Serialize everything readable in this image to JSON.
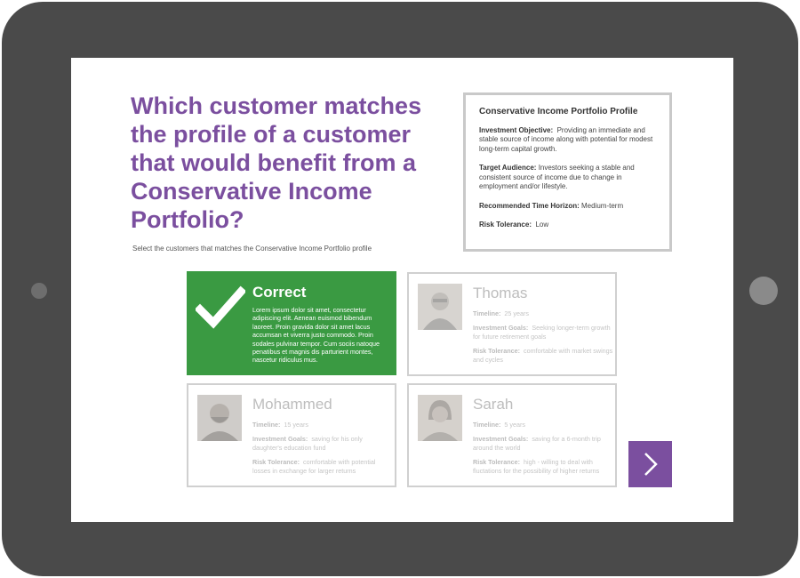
{
  "question": "Which customer matches the profile of a customer that would benefit from a Conservative Income Portfolio?",
  "instruction": "Select the customers that matches the Conservative Income Portfolio profile",
  "profile": {
    "title": "Conservative Income Portfolio Profile",
    "items": [
      {
        "label": "Investment Objective:",
        "value": "Providing an immediate and stable source of income along with potential for modest long-term capital growth."
      },
      {
        "label": "Target Audience:",
        "value": "Investors seeking a stable and consistent source of income due to change in employment and/or lifestyle."
      },
      {
        "label": "Recommended Time Horizon:",
        "value": "Medium-term"
      },
      {
        "label": "Risk Tolerance:",
        "value": "Low"
      }
    ]
  },
  "feedback": {
    "title": "Correct",
    "body": "Lorem ipsum dolor sit amet, consectetur adipiscing elit. Aenean euismod bibendum laoreet. Proin gravida dolor sit amet lacus accumsan et viverra justo commodo. Proin sodales pulvinar tempor. Cum sociis natoque penatibus et magnis dis parturient montes, nascetur ridiculus mus.",
    "color": "#3a9a42"
  },
  "customers": [
    {
      "name": "Thomas",
      "timeline_label": "Timeline:",
      "timeline": "25 years",
      "goals_label": "Investment Goals:",
      "goals": "Seeking longer-term growth for future retirement goals",
      "risk_label": "Risk Tolerance:",
      "risk": "comfortable with market swings and cycles"
    },
    {
      "name": "Mohammed",
      "timeline_label": "Timeline:",
      "timeline": "15 years",
      "goals_label": "Investment Goals:",
      "goals": "saving for his only daughter's education fund",
      "risk_label": "Risk Tolerance:",
      "risk": "comfortable with potential losses in exchange for larger returns"
    },
    {
      "name": "Sarah",
      "timeline_label": "Timeline:",
      "timeline": "5 years",
      "goals_label": "Investment Goals:",
      "goals": "saving for a 6-month trip around the world",
      "risk_label": "Risk Tolerance:",
      "risk": "high - willing to deal with fluctations for the possibility of higher returns"
    }
  ],
  "next_icon": "chevron-right-icon",
  "colors": {
    "accent": "#7b4f9f",
    "tablet": "#4a4a4a",
    "correct": "#3a9a42"
  }
}
